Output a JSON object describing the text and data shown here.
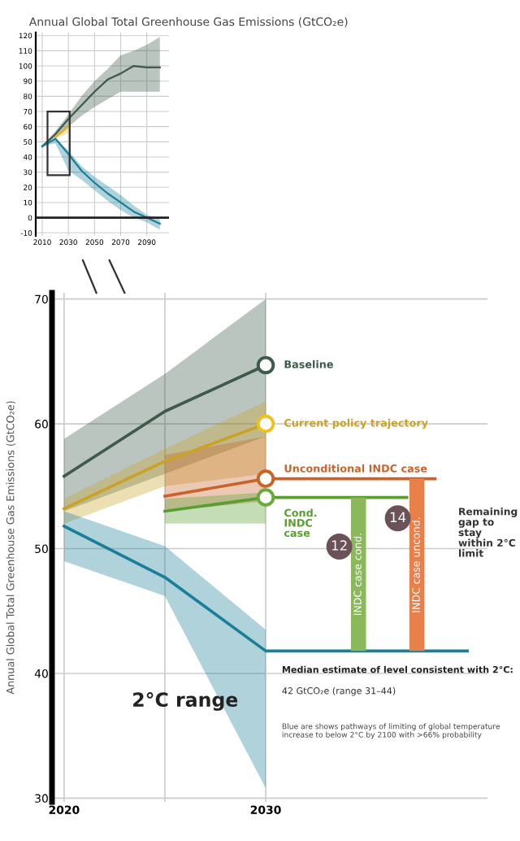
{
  "chart_data": [
    {
      "type": "line",
      "title": "Annual Global Total Greenhouse Gas Emissions (GtCO₂e)",
      "xlim": [
        2005,
        2107
      ],
      "xticks": [
        2010,
        2030,
        2050,
        2070,
        2090
      ],
      "ylim": [
        -12,
        122
      ],
      "yticks": [
        -10,
        0,
        10,
        20,
        30,
        40,
        50,
        60,
        70,
        80,
        90,
        100,
        110,
        120
      ],
      "grid": true,
      "ref_lines": [
        {
          "axis": "y",
          "value": 0,
          "color": "#222222"
        }
      ],
      "series": [
        {
          "color": "#3d5a4b",
          "x": [
            2010,
            2020,
            2030,
            2040,
            2050,
            2060,
            2070,
            2080,
            2090,
            2100
          ],
          "values": [
            47,
            55,
            65,
            74,
            83,
            91,
            95,
            100,
            99,
            99
          ],
          "lower": [
            47,
            53,
            60,
            67,
            73,
            78,
            83,
            83,
            83,
            83
          ],
          "upper": [
            47,
            57,
            68,
            80,
            90,
            98,
            107,
            110,
            114,
            119
          ]
        },
        {
          "color": "#e0b020",
          "x": [
            2020,
            2030
          ],
          "values": [
            53,
            60
          ],
          "lower": [
            52,
            56
          ],
          "upper": [
            54,
            62
          ]
        },
        {
          "color": "#1a7f99",
          "x": [
            2010,
            2020,
            2030,
            2040,
            2050,
            2060,
            2070,
            2080,
            2090,
            2100
          ],
          "values": [
            47,
            52,
            42,
            31,
            23,
            16,
            10,
            4,
            0,
            -4
          ],
          "lower": [
            47,
            49,
            31,
            25,
            18,
            11,
            5,
            0,
            -3,
            -8
          ],
          "upper": [
            47,
            53,
            44,
            34,
            27,
            21,
            15,
            8,
            2,
            -1
          ]
        }
      ]
    },
    {
      "type": "line",
      "ylabel": "Annual Global Total Greenhouse Gas Emissions (GtCO₂e)",
      "xlim": [
        2019.4,
        2041
      ],
      "xticks": [
        2020,
        {
          "value": 2025,
          "label": null
        },
        2030
      ],
      "ylim": [
        29.7,
        70.5
      ],
      "yticks": [
        30,
        40,
        50,
        60,
        70
      ],
      "grid": true,
      "series": [
        {
          "name": "Baseline",
          "color": "#3d5a4b",
          "x": [
            2020,
            2025,
            2030
          ],
          "values": [
            55.8,
            61,
            64.7
          ],
          "lower": [
            53,
            56,
            59
          ],
          "upper": [
            58.8,
            64,
            70
          ]
        },
        {
          "name": "Current policy trajectory",
          "color": "#c9a227",
          "x": [
            2020,
            2025,
            2030
          ],
          "values": [
            53.2,
            57,
            60
          ],
          "lower": [
            52,
            55,
            56
          ],
          "upper": [
            54,
            58,
            61.8
          ]
        },
        {
          "name": "Unconditional INDC case",
          "color": "#c8642a",
          "x": [
            2025,
            2030,
            2038.4
          ],
          "values": [
            54.2,
            55.6,
            55.6
          ],
          "lower": [
            53,
            53.8,
            null
          ],
          "upper": [
            57.5,
            59,
            null
          ]
        },
        {
          "name": "Cond. INDC case",
          "color": "#5a9e32",
          "x": [
            2025,
            2030,
            2037
          ],
          "values": [
            53,
            54.1,
            54.1
          ],
          "lower": [
            52,
            52,
            null
          ],
          "upper": [
            54,
            54.5,
            null
          ]
        },
        {
          "color": "#1a7f99",
          "x": [
            2020,
            2025,
            2030,
            2040
          ],
          "values": [
            51.8,
            47.7,
            41.8,
            41.8
          ],
          "lower": [
            49,
            46.2,
            30.8,
            null
          ],
          "upper": [
            53,
            50.2,
            43.5,
            null
          ]
        },
        {
          "type": "scatter",
          "marker": "circle",
          "x": [
            2030,
            2030,
            2030,
            2030
          ],
          "values": [
            64.7,
            60,
            55.6,
            54.1
          ],
          "colors": [
            "#3d5a4b",
            "#f0c020",
            "#c8642a",
            "#6aaa3a"
          ]
        },
        {
          "type": "bar",
          "name": "INDC case cond.",
          "color": "#8ab85a",
          "x": [
            2034.6
          ],
          "base": [
            41.8
          ],
          "values": [
            12.3
          ],
          "value_labels": [
            "12"
          ]
        },
        {
          "type": "bar",
          "name": "INDC case uncond.",
          "color": "#e8804a",
          "x": [
            2037.5
          ],
          "base": [
            41.8
          ],
          "values": [
            13.8
          ],
          "value_labels": [
            "14"
          ]
        }
      ],
      "annotations": [
        "2°C range",
        {
          "text": "Median estimate of level consistent with 2°C:",
          "x": 2030.8,
          "y": 41.8
        },
        "42 GtCO₂e (range 31–44)",
        "Remaining gap to stay within 2°C limit",
        "Blue are shows pathways of limiting of global temperature increase to below 2°C by 2100 with >66% probability"
      ]
    }
  ]
}
